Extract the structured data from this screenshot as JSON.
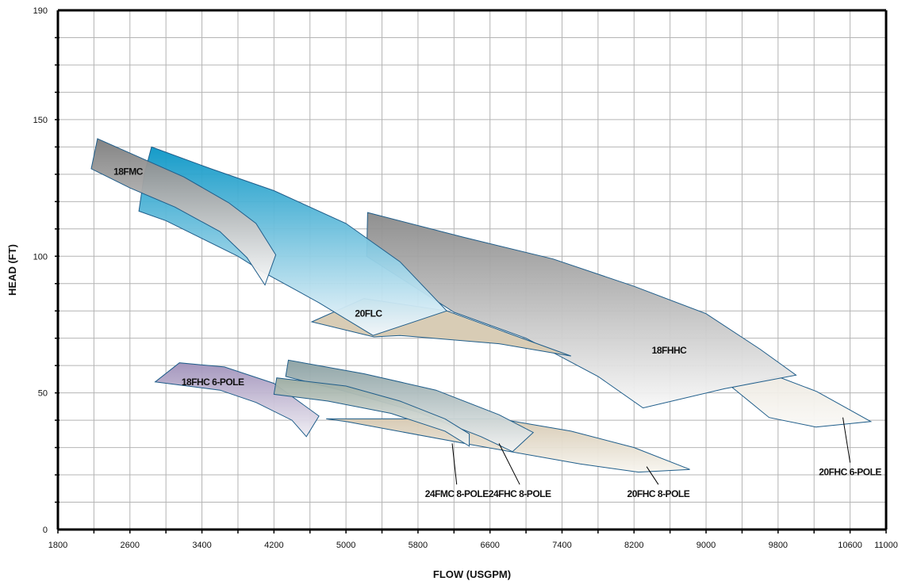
{
  "chart_data": {
    "type": "area",
    "xlabel": "FLOW (USGPM)",
    "ylabel": "HEAD (FT)",
    "xlim": [
      1800,
      11000
    ],
    "ylim": [
      0,
      190
    ],
    "x_ticks": [
      "1800",
      "2600",
      "3400",
      "4200",
      "5000",
      "5800",
      "6600",
      "7400",
      "8200",
      "9000",
      "9800",
      "10600",
      "11000"
    ],
    "y_ticks": [
      "0",
      "50",
      "100",
      "150",
      "190"
    ],
    "grid": true,
    "series": [
      {
        "name": "20FHC 6-POLE",
        "color_top": "#eeeae2",
        "color_bottom": "#faf9f6",
        "label_placement": "callout",
        "label_pos": [
          10600,
          21
        ],
        "leader_to": [
          10520,
          41
        ],
        "outline": [
          [
            9290,
            52
          ],
          [
            9790,
            56
          ],
          [
            10230,
            50.5
          ],
          [
            10830,
            39.5
          ],
          [
            10220,
            37.5
          ],
          [
            9700,
            41
          ]
        ]
      },
      {
        "name": "20FHC 8-POLE",
        "color_top": "#d6c9b2",
        "color_bottom": "#f7f5ef",
        "label_placement": "callout",
        "label_pos": [
          8470,
          13
        ],
        "leader_to": [
          8340,
          23
        ],
        "outline": [
          [
            4780,
            40.5
          ],
          [
            6000,
            40.5
          ],
          [
            6700,
            40.5
          ],
          [
            7500,
            36
          ],
          [
            8200,
            30
          ],
          [
            8820,
            22
          ],
          [
            8250,
            21
          ],
          [
            7600,
            24
          ],
          [
            6400,
            31
          ],
          [
            5000,
            39.5
          ]
        ]
      },
      {
        "name": "18FHC 6-POLE",
        "color_top": "#a091ba",
        "color_bottom": "#efedf3",
        "label_placement": "inside",
        "label_pos": [
          3520,
          54
        ],
        "outline": [
          [
            2880,
            54
          ],
          [
            3150,
            61
          ],
          [
            3650,
            59.5
          ],
          [
            4200,
            53.5
          ],
          [
            4700,
            41.5
          ],
          [
            4560,
            34
          ],
          [
            4400,
            40
          ],
          [
            4000,
            46.5
          ],
          [
            3600,
            51
          ]
        ]
      },
      {
        "name": "24FHC 8-POLE",
        "color_top": "#8aa0a2",
        "color_bottom": "#f2f3f3",
        "label_placement": "callout",
        "label_pos": [
          6930,
          13
        ],
        "leader_to": [
          6700,
          31.5
        ],
        "outline": [
          [
            4330,
            56
          ],
          [
            4360,
            62
          ],
          [
            5200,
            57
          ],
          [
            6000,
            51
          ],
          [
            6700,
            42
          ],
          [
            7080,
            35.5
          ],
          [
            6850,
            28.5
          ],
          [
            6500,
            34
          ],
          [
            5800,
            43
          ],
          [
            5000,
            50.5
          ]
        ]
      },
      {
        "name": "24FMC 8-POLE",
        "color_top": "#9aaaa0",
        "color_bottom": "#f4f5f4",
        "label_placement": "callout",
        "label_pos": [
          6230,
          13
        ],
        "leader_to": [
          6180,
          31.5
        ],
        "outline": [
          [
            4200,
            49.5
          ],
          [
            4230,
            55.5
          ],
          [
            5000,
            52.5
          ],
          [
            5600,
            47
          ],
          [
            6100,
            40.5
          ],
          [
            6370,
            35
          ],
          [
            6370,
            30.5
          ],
          [
            6100,
            36
          ],
          [
            5500,
            42.5
          ],
          [
            4800,
            47
          ]
        ]
      },
      {
        "name": "18FHHC",
        "color_top": "#8a8a8a",
        "color_bottom": "#f8f8f8",
        "label_placement": "inside",
        "label_pos": [
          8590,
          65.5
        ],
        "outline": [
          [
            5240,
            116
          ],
          [
            6300,
            107
          ],
          [
            7300,
            99
          ],
          [
            8200,
            89
          ],
          [
            9000,
            79
          ],
          [
            9600,
            66
          ],
          [
            10000,
            56.5
          ],
          [
            9200,
            51.5
          ],
          [
            8300,
            44.5
          ],
          [
            7800,
            56
          ],
          [
            7000,
            70
          ],
          [
            6200,
            79.5
          ],
          [
            5230,
            100
          ]
        ]
      },
      {
        "name": "20FLC",
        "color_top": "#0996c6",
        "color_bottom": "#f2f7fb",
        "label_placement": "inside",
        "label_pos": [
          5250,
          79
        ],
        "outline": [
          [
            2840,
            140
          ],
          [
            3500,
            132
          ],
          [
            4200,
            124
          ],
          [
            5000,
            112
          ],
          [
            5600,
            98
          ],
          [
            6120,
            80
          ],
          [
            5300,
            71
          ],
          [
            4700,
            83
          ],
          [
            4090,
            94
          ],
          [
            3800,
            100
          ],
          [
            3000,
            113
          ],
          [
            2700,
            116.5
          ],
          [
            2760,
            130
          ]
        ],
        "extra_outline": [
          [
            4620,
            76
          ],
          [
            5200,
            84.5
          ],
          [
            6120,
            80
          ],
          [
            7500,
            63.5
          ],
          [
            6700,
            68
          ],
          [
            5600,
            71
          ],
          [
            5310,
            70.5
          ]
        ]
      },
      {
        "name": "18FMC",
        "color_top": "#7d7d7d",
        "color_bottom": "#fbfbfb",
        "label_placement": "inside",
        "label_pos": [
          2580,
          131
        ],
        "outline": [
          [
            2170,
            132
          ],
          [
            2240,
            143
          ],
          [
            3200,
            129
          ],
          [
            3700,
            119.5
          ],
          [
            4000,
            112
          ],
          [
            4220,
            100.5
          ],
          [
            4100,
            89.5
          ],
          [
            3900,
            99.5
          ],
          [
            3600,
            109
          ],
          [
            3100,
            118
          ],
          [
            2600,
            125
          ]
        ]
      }
    ]
  }
}
